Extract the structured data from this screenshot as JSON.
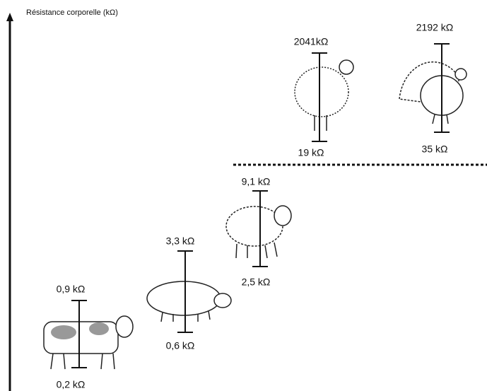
{
  "axis_label": "Résistance corporelle (kΩ)",
  "animals": [
    {
      "max": "0,9 kΩ",
      "min": "0,2 kΩ"
    },
    {
      "max": "3,3 kΩ",
      "min": "0,6 kΩ"
    },
    {
      "max": "9,1 kΩ",
      "min": "2,5 kΩ"
    },
    {
      "max": "2041kΩ",
      "min": "19 kΩ"
    },
    {
      "max": "2192 kΩ",
      "min": "35 kΩ"
    }
  ]
}
